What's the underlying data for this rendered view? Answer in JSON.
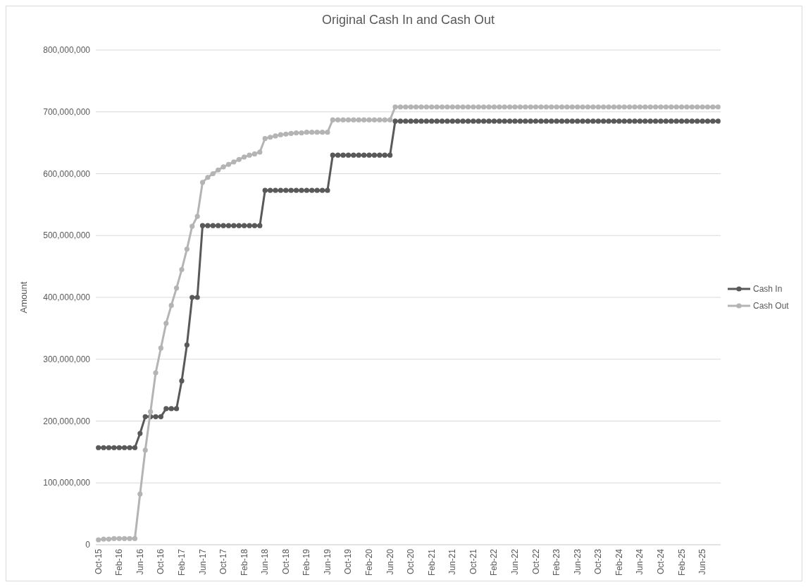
{
  "chart_data": {
    "type": "line",
    "title": "Original Cash In and Cash Out",
    "ylabel": "Amount",
    "categories": [
      "Oct-15",
      null,
      null,
      null,
      "Feb-16",
      null,
      null,
      null,
      "Jun-16",
      null,
      null,
      null,
      "Oct-16",
      null,
      null,
      null,
      "Feb-17",
      null,
      null,
      null,
      "Jun-17",
      null,
      null,
      null,
      "Oct-17",
      null,
      null,
      null,
      "Feb-18",
      null,
      null,
      null,
      "Jun-18",
      null,
      null,
      null,
      "Oct-18",
      null,
      null,
      null,
      "Feb-19",
      null,
      null,
      null,
      "Jun-19",
      null,
      null,
      null,
      "Oct-19",
      null,
      null,
      null,
      "Feb-20",
      null,
      null,
      null,
      "Jun-20",
      null,
      null,
      null,
      "Oct-20",
      null,
      null,
      null,
      "Feb-21",
      null,
      null,
      null,
      "Jun-21",
      null,
      null,
      null,
      "Oct-21",
      null,
      null,
      null,
      "Feb-22",
      null,
      null,
      null,
      "Jun-22",
      null,
      null,
      null,
      "Oct-22",
      null,
      null,
      null,
      "Feb-23",
      null,
      null,
      null,
      "Jun-23",
      null,
      null,
      null,
      "Oct-23",
      null,
      null,
      null,
      "Feb-24",
      null,
      null,
      null,
      "Jun-24",
      null,
      null,
      null,
      "Oct-24",
      null,
      null,
      null,
      "Feb-25",
      null,
      null,
      null,
      "Jun-25",
      null,
      null,
      null
    ],
    "series": [
      {
        "name": "Cash In",
        "color": "#595959",
        "values": [
          157000000,
          157000000,
          157000000,
          157000000,
          157000000,
          157000000,
          157000000,
          157000000,
          180000000,
          207000000,
          207000000,
          207000000,
          207000000,
          220000000,
          220000000,
          220000000,
          265000000,
          323000000,
          400000000,
          400000000,
          516000000,
          516000000,
          516000000,
          516000000,
          516000000,
          516000000,
          516000000,
          516000000,
          516000000,
          516000000,
          516000000,
          516000000,
          573000000,
          573000000,
          573000000,
          573000000,
          573000000,
          573000000,
          573000000,
          573000000,
          573000000,
          573000000,
          573000000,
          573000000,
          573000000,
          630000000,
          630000000,
          630000000,
          630000000,
          630000000,
          630000000,
          630000000,
          630000000,
          630000000,
          630000000,
          630000000,
          630000000,
          685000000,
          685000000,
          685000000,
          685000000,
          685000000,
          685000000,
          685000000,
          685000000,
          685000000,
          685000000,
          685000000,
          685000000,
          685000000,
          685000000,
          685000000,
          685000000,
          685000000,
          685000000,
          685000000,
          685000000,
          685000000,
          685000000,
          685000000,
          685000000,
          685000000,
          685000000,
          685000000,
          685000000,
          685000000,
          685000000,
          685000000,
          685000000,
          685000000,
          685000000,
          685000000,
          685000000,
          685000000,
          685000000,
          685000000,
          685000000,
          685000000,
          685000000,
          685000000,
          685000000,
          685000000,
          685000000,
          685000000,
          685000000,
          685000000,
          685000000,
          685000000,
          685000000,
          685000000,
          685000000,
          685000000,
          685000000,
          685000000,
          685000000,
          685000000,
          685000000,
          685000000,
          685000000,
          685000000
        ]
      },
      {
        "name": "Cash Out",
        "color": "#b4b4b4",
        "values": [
          8000000,
          9000000,
          9000000,
          10000000,
          10000000,
          10000000,
          10000000,
          10000000,
          82000000,
          153000000,
          215000000,
          278000000,
          318000000,
          358000000,
          387000000,
          415000000,
          445000000,
          478000000,
          515000000,
          531000000,
          586000000,
          594000000,
          600000000,
          606000000,
          611000000,
          615000000,
          619000000,
          623000000,
          627000000,
          630000000,
          632000000,
          635000000,
          657000000,
          659000000,
          661000000,
          663000000,
          664000000,
          665000000,
          666000000,
          666000000,
          667000000,
          667000000,
          667000000,
          667000000,
          667000000,
          687000000,
          687000000,
          687000000,
          687000000,
          687000000,
          687000000,
          687000000,
          687000000,
          687000000,
          687000000,
          687000000,
          687000000,
          708000000,
          708000000,
          708000000,
          708000000,
          708000000,
          708000000,
          708000000,
          708000000,
          708000000,
          708000000,
          708000000,
          708000000,
          708000000,
          708000000,
          708000000,
          708000000,
          708000000,
          708000000,
          708000000,
          708000000,
          708000000,
          708000000,
          708000000,
          708000000,
          708000000,
          708000000,
          708000000,
          708000000,
          708000000,
          708000000,
          708000000,
          708000000,
          708000000,
          708000000,
          708000000,
          708000000,
          708000000,
          708000000,
          708000000,
          708000000,
          708000000,
          708000000,
          708000000,
          708000000,
          708000000,
          708000000,
          708000000,
          708000000,
          708000000,
          708000000,
          708000000,
          708000000,
          708000000,
          708000000,
          708000000,
          708000000,
          708000000,
          708000000,
          708000000,
          708000000,
          708000000,
          708000000,
          708000000
        ]
      }
    ],
    "ylim": [
      0,
      800000000
    ],
    "yticks": [
      {
        "value": 0,
        "label": "0"
      },
      {
        "value": 100000000,
        "label": "100,000,000"
      },
      {
        "value": 200000000,
        "label": "200,000,000"
      },
      {
        "value": 300000000,
        "label": "300,000,000"
      },
      {
        "value": 400000000,
        "label": "400,000,000"
      },
      {
        "value": 500000000,
        "label": "500,000,000"
      },
      {
        "value": 600000000,
        "label": "600,000,000"
      },
      {
        "value": 700000000,
        "label": "700,000,000"
      },
      {
        "value": 800000000,
        "label": "800,000,000"
      }
    ],
    "grid": "y",
    "legend": "right",
    "marker": "circle",
    "line_style": "solid"
  }
}
